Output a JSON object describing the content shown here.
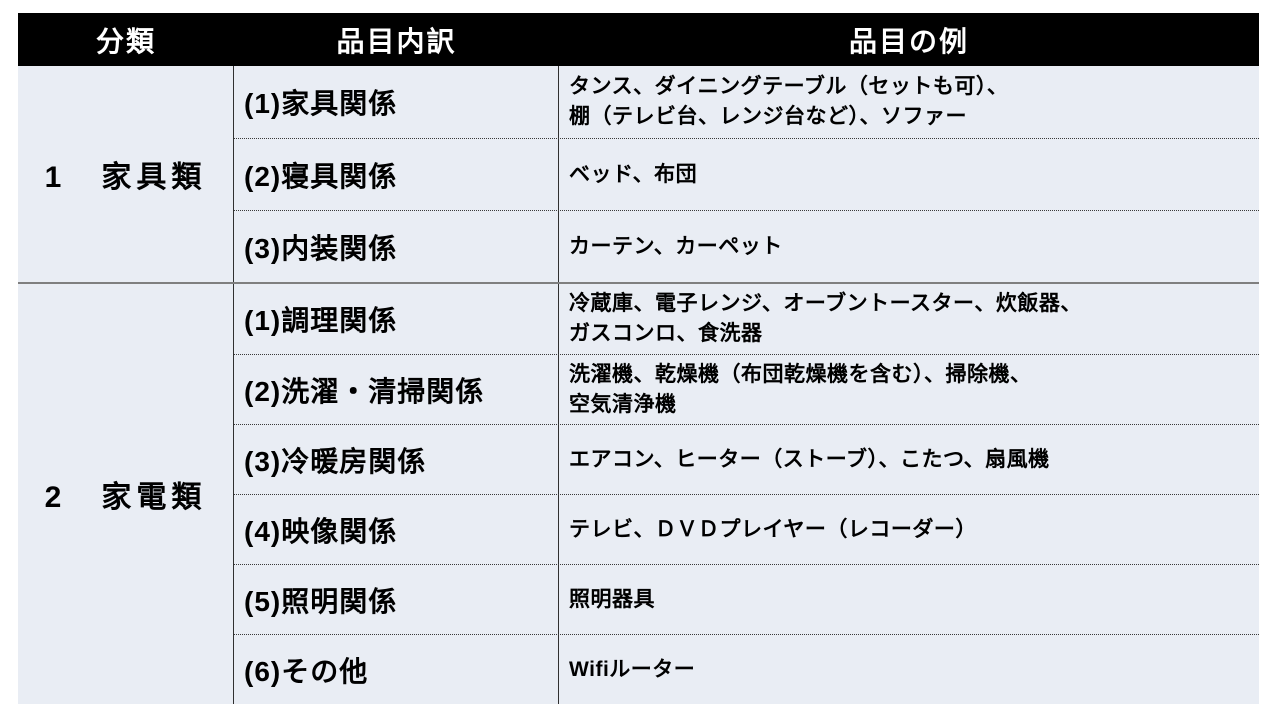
{
  "colors": {
    "header_bg": "#000000",
    "header_text": "#ffffff",
    "cell_bg": "#e9edf4",
    "section_divider": "#7f7f7f",
    "grid_line": "#303030",
    "text": "#000000"
  },
  "table": {
    "headers": [
      "分類",
      "品目内訳",
      "品目の例"
    ],
    "sections": [
      {
        "category": "1　家具類",
        "rows": [
          {
            "label": "(1)家具関係",
            "examples": [
              "タンス、ダイニングテーブル（セットも可）、",
              "棚（テレビ台、レンジ台など）、ソファー"
            ]
          },
          {
            "label": "(2)寝具関係",
            "examples": [
              "ベッド、布団"
            ]
          },
          {
            "label": "(3)内装関係",
            "examples": [
              "カーテン、カーペット"
            ]
          }
        ]
      },
      {
        "category": "2　家電類",
        "rows": [
          {
            "label": "(1)調理関係",
            "examples": [
              "冷蔵庫、電子レンジ、オーブントースター、炊飯器、",
              "ガスコンロ、食洗器"
            ]
          },
          {
            "label": "(2)洗濯・清掃関係",
            "examples": [
              "洗濯機、乾燥機（布団乾燥機を含む）、掃除機、",
              "空気清浄機"
            ]
          },
          {
            "label": "(3)冷暖房関係",
            "examples": [
              "エアコン、ヒーター（ストーブ）、こたつ、扇風機"
            ]
          },
          {
            "label": "(4)映像関係",
            "examples": [
              "テレビ、ＤＶＤプレイヤー（レコーダー）"
            ]
          },
          {
            "label": "(5)照明関係",
            "examples": [
              "照明器具"
            ]
          },
          {
            "label": "(6)その他",
            "examples": [
              "Wifiルーター"
            ]
          }
        ]
      }
    ]
  }
}
